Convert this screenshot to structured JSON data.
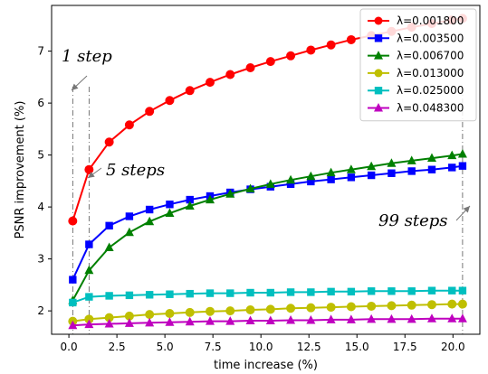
{
  "chart_data": {
    "type": "line",
    "xlabel": "time increase (%)",
    "ylabel": "PSNR improvement (%)",
    "xlim": [
      -0.9,
      21.4
    ],
    "ylim": [
      1.55,
      7.88
    ],
    "xticks": [
      "0.0",
      "2.5",
      "5.0",
      "7.5",
      "10.0",
      "12.5",
      "15.0",
      "17.5",
      "20.0"
    ],
    "xtick_values": [
      0,
      2.5,
      5,
      7.5,
      10,
      12.5,
      15,
      17.5,
      20
    ],
    "yticks": [
      "2",
      "3",
      "4",
      "5",
      "6",
      "7"
    ],
    "ytick_values": [
      2,
      3,
      4,
      5,
      6,
      7
    ],
    "grid": false,
    "legend_position": "top-right",
    "x": [
      0.2,
      1.05,
      2.1,
      3.15,
      4.2,
      5.25,
      6.3,
      7.35,
      8.4,
      9.45,
      10.5,
      11.55,
      12.6,
      13.65,
      14.7,
      15.75,
      16.8,
      17.85,
      18.9,
      19.95,
      20.5
    ],
    "series": [
      {
        "name": "λ=0.001800",
        "color": "#ff0000",
        "marker": "circle",
        "values": [
          3.73,
          4.72,
          5.25,
          5.58,
          5.84,
          6.05,
          6.24,
          6.4,
          6.55,
          6.68,
          6.8,
          6.91,
          7.02,
          7.12,
          7.22,
          7.3,
          7.38,
          7.46,
          7.53,
          7.6,
          7.63
        ]
      },
      {
        "name": "λ=0.003500",
        "color": "#0000ff",
        "marker": "square",
        "values": [
          2.6,
          3.28,
          3.64,
          3.82,
          3.95,
          4.05,
          4.14,
          4.21,
          4.28,
          4.34,
          4.39,
          4.44,
          4.49,
          4.53,
          4.57,
          4.61,
          4.65,
          4.69,
          4.72,
          4.76,
          4.79
        ]
      },
      {
        "name": "λ=0.006700",
        "color": "#008000",
        "marker": "triangle",
        "values": [
          2.2,
          2.78,
          3.22,
          3.51,
          3.72,
          3.88,
          4.02,
          4.14,
          4.25,
          4.35,
          4.44,
          4.52,
          4.59,
          4.66,
          4.72,
          4.78,
          4.84,
          4.89,
          4.94,
          4.99,
          5.02
        ]
      },
      {
        "name": "λ=0.013000",
        "color": "#bfbf00",
        "marker": "circle",
        "values": [
          1.8,
          1.84,
          1.87,
          1.9,
          1.93,
          1.95,
          1.97,
          1.99,
          2.0,
          2.02,
          2.03,
          2.05,
          2.06,
          2.07,
          2.08,
          2.09,
          2.1,
          2.11,
          2.12,
          2.13,
          2.13
        ]
      },
      {
        "name": "λ=0.025000",
        "color": "#00bfbf",
        "marker": "square",
        "values": [
          2.16,
          2.27,
          2.29,
          2.3,
          2.31,
          2.32,
          2.33,
          2.34,
          2.34,
          2.35,
          2.35,
          2.36,
          2.36,
          2.37,
          2.37,
          2.38,
          2.38,
          2.38,
          2.39,
          2.39,
          2.39
        ]
      },
      {
        "name": "λ=0.048300",
        "color": "#bf00bf",
        "marker": "triangle",
        "values": [
          1.72,
          1.74,
          1.75,
          1.76,
          1.77,
          1.78,
          1.79,
          1.8,
          1.8,
          1.81,
          1.81,
          1.82,
          1.82,
          1.83,
          1.83,
          1.84,
          1.84,
          1.84,
          1.85,
          1.85,
          1.85
        ]
      }
    ],
    "annotations": [
      {
        "text": "1 step",
        "x": 0.2
      },
      {
        "text": "5 steps",
        "x": 1.05
      },
      {
        "text": "99 steps",
        "x": 20.5
      }
    ]
  }
}
